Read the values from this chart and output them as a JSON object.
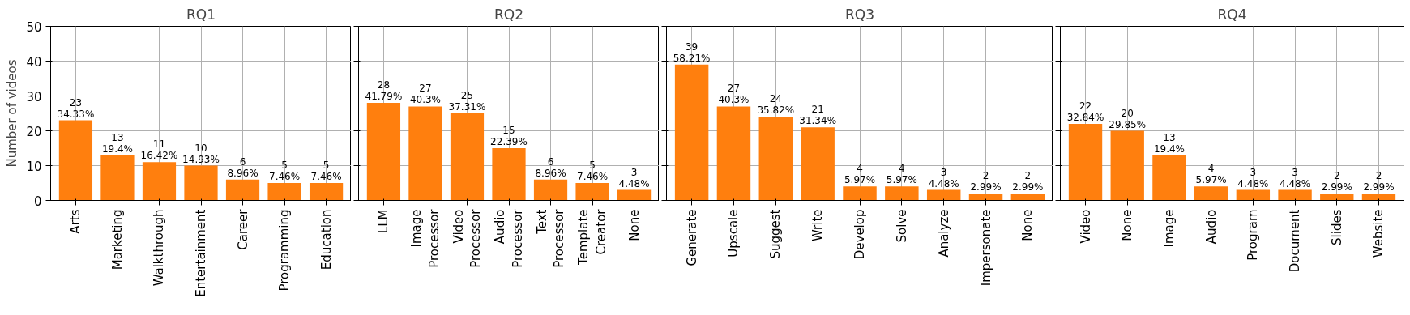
{
  "chart_data": [
    {
      "type": "bar",
      "title": "RQ1",
      "ylabel": "Number of videos",
      "color": "#ff7f0e",
      "ylim": [
        0,
        50
      ],
      "yticks": [
        0,
        10,
        20,
        30,
        40,
        50
      ],
      "grid": true,
      "categories": [
        "Arts",
        "Marketing",
        "Walkthrough",
        "Entertainment",
        "Career",
        "Programming",
        "Education"
      ],
      "values": [
        23,
        13,
        11,
        10,
        6,
        5,
        5
      ],
      "value_labels": [
        "23\n34.33%",
        "13\n19.4%",
        "11\n16.42%",
        "10\n14.93%",
        "6\n8.96%",
        "5\n7.46%",
        "5\n7.46%"
      ]
    },
    {
      "type": "bar",
      "title": "RQ2",
      "color": "#ff7f0e",
      "ylim": [
        0,
        50
      ],
      "yticks": [
        0,
        10,
        20,
        30,
        40,
        50
      ],
      "grid": true,
      "tick_labels": "x",
      "categories": [
        "LLM",
        "Image\nProcessor",
        "Video\nProcessor",
        "Audio\nProcessor",
        "Text\nProcessor",
        "Template\nCreator",
        "None"
      ],
      "values": [
        28,
        27,
        25,
        15,
        6,
        5,
        3
      ],
      "value_labels": [
        "28\n41.79%",
        "27\n40.3%",
        "25\n37.31%",
        "15\n22.39%",
        "6\n8.96%",
        "5\n7.46%",
        "3\n4.48%"
      ]
    },
    {
      "type": "bar",
      "title": "RQ3",
      "color": "#ff7f0e",
      "ylim": [
        0,
        50
      ],
      "yticks": [
        0,
        10,
        20,
        30,
        40,
        50
      ],
      "grid": true,
      "tick_labels": "x",
      "categories": [
        "Generate",
        "Upscale",
        "Suggest",
        "Write",
        "Develop",
        "Solve",
        "Analyze",
        "Impersonate",
        "None"
      ],
      "values": [
        39,
        27,
        24,
        21,
        4,
        4,
        3,
        2,
        2
      ],
      "value_labels": [
        "39\n58.21%",
        "27\n40.3%",
        "24\n35.82%",
        "21\n31.34%",
        "4\n5.97%",
        "4\n5.97%",
        "3\n4.48%",
        "2\n2.99%",
        "2\n2.99%"
      ]
    },
    {
      "type": "bar",
      "title": "RQ4",
      "color": "#ff7f0e",
      "ylim": [
        0,
        50
      ],
      "yticks": [
        0,
        10,
        20,
        30,
        40,
        50
      ],
      "grid": true,
      "tick_labels": "x",
      "categories": [
        "Video",
        "None",
        "Image",
        "Audio",
        "Program",
        "Document",
        "Slides",
        "Website"
      ],
      "values": [
        22,
        20,
        13,
        4,
        3,
        3,
        2,
        2
      ],
      "value_labels": [
        "22\n32.84%",
        "20\n29.85%",
        "13\n19.4%",
        "4\n5.97%",
        "3\n4.48%",
        "3\n4.48%",
        "2\n2.99%",
        "2\n2.99%"
      ]
    }
  ]
}
